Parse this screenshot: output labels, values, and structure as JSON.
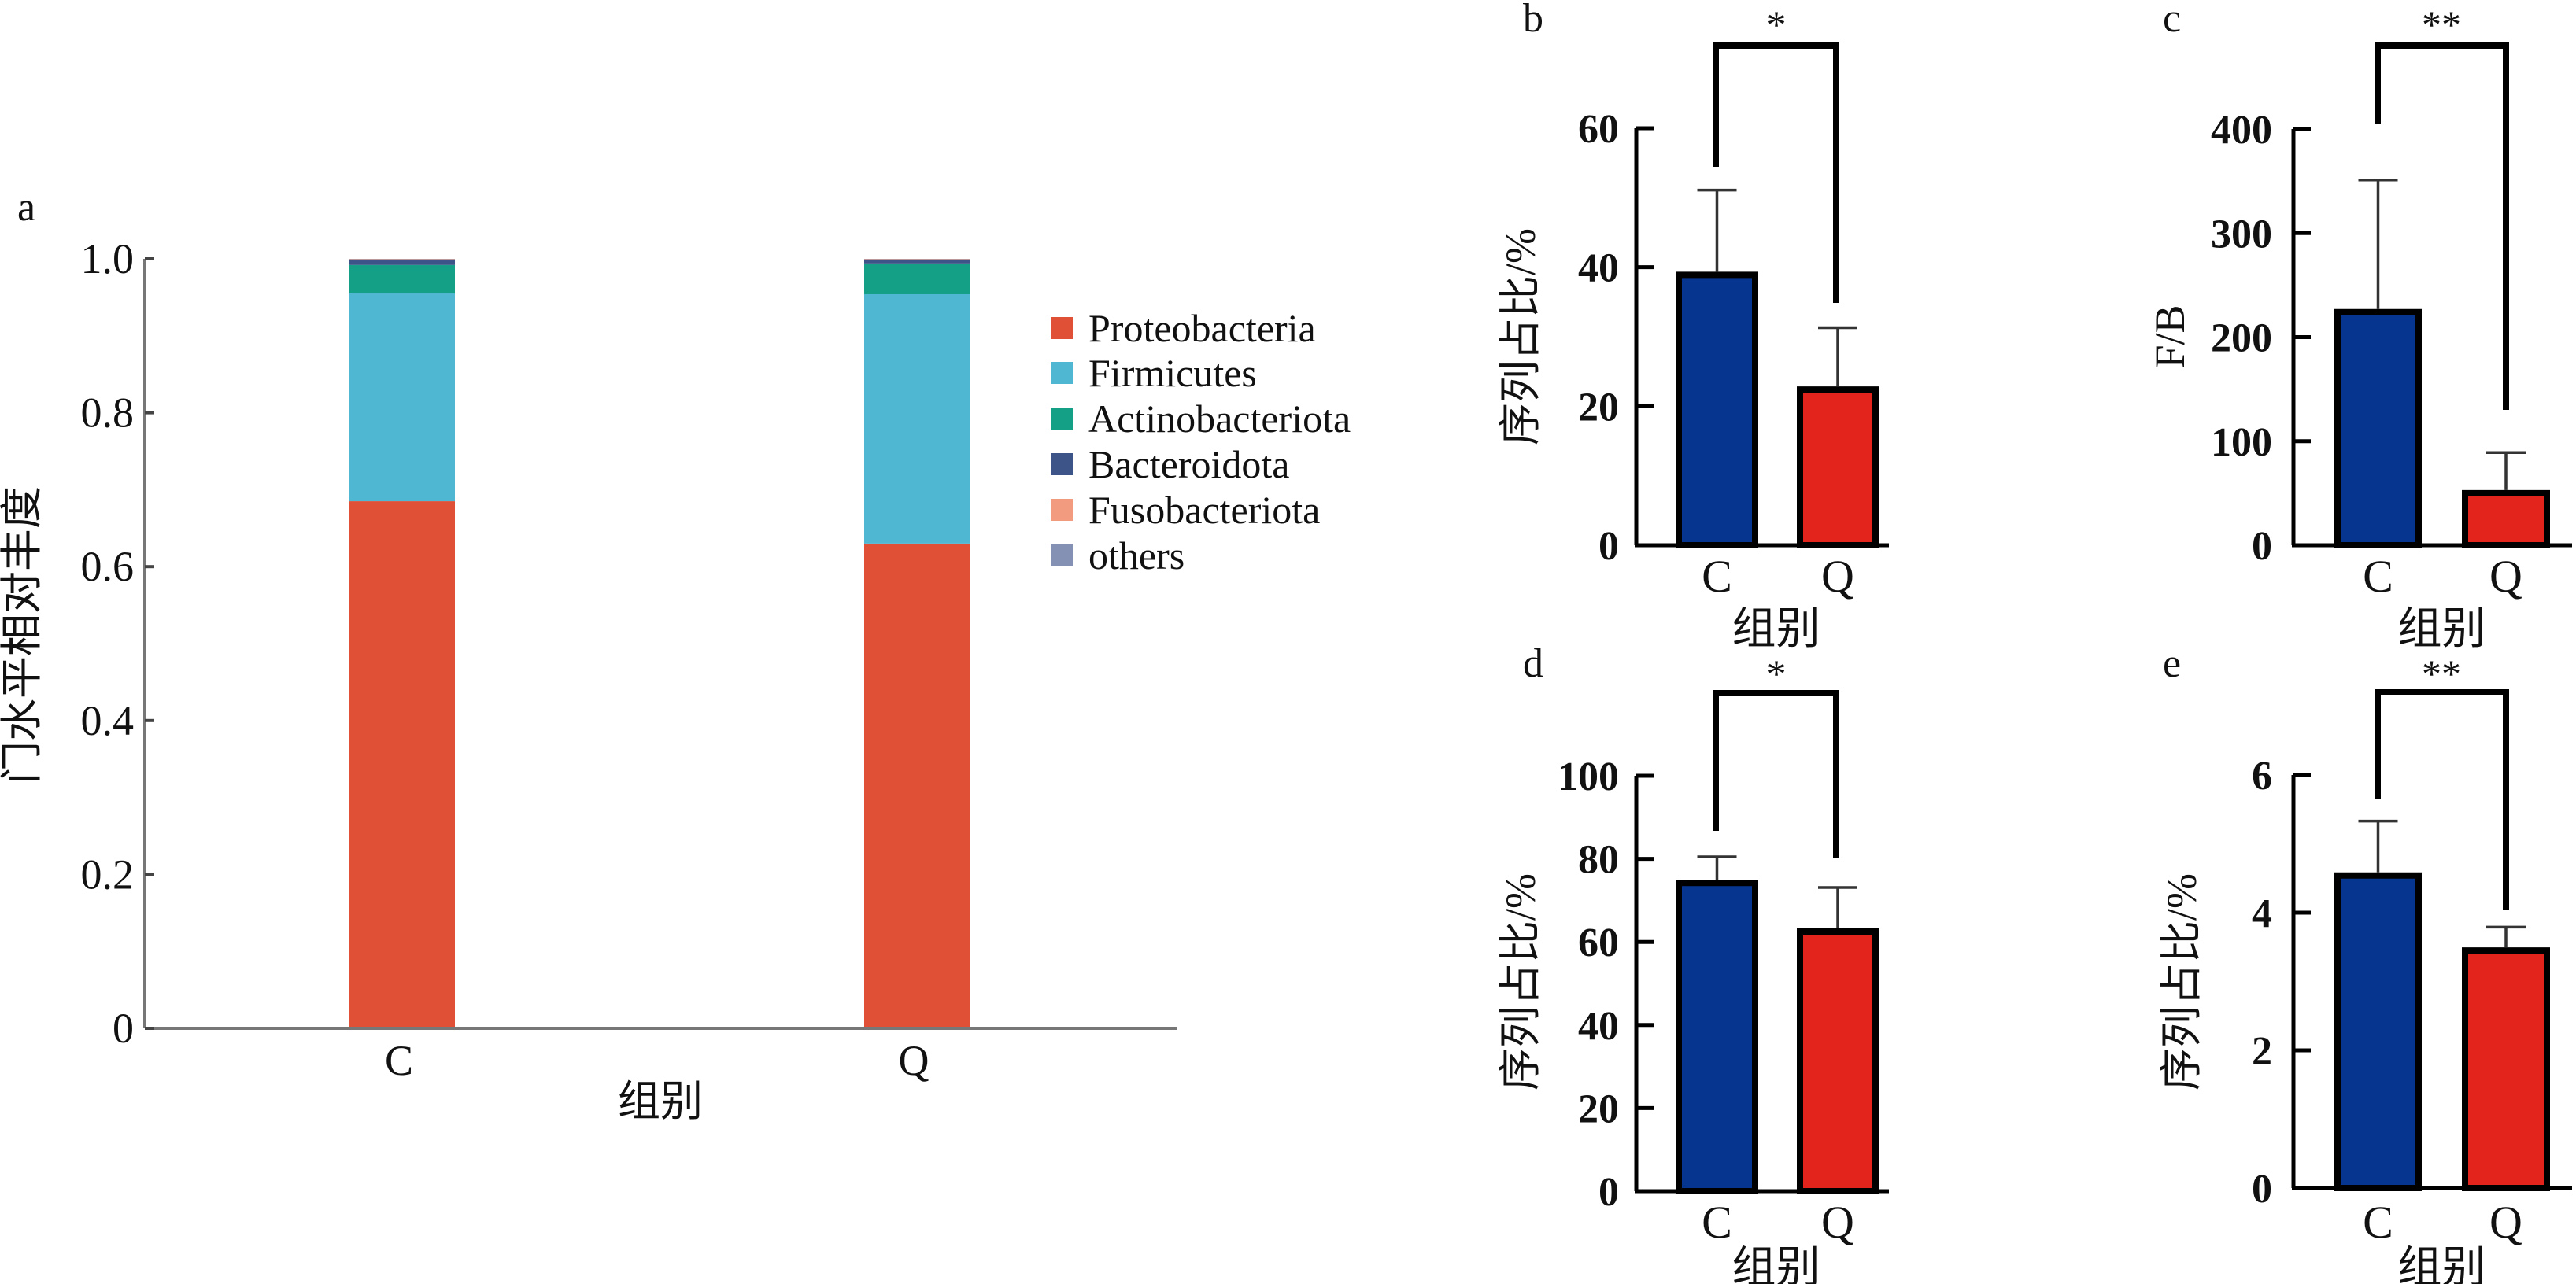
{
  "figure_labels": {
    "a": "a",
    "b": "b",
    "c": "c",
    "d": "d",
    "e": "e"
  },
  "chart_data": [
    {
      "panel": "a",
      "type": "bar",
      "stacked": true,
      "title": "",
      "xlabel": "组别",
      "ylabel": "门水平相对丰度",
      "categories": [
        "C",
        "Q"
      ],
      "ylim": [
        0,
        1.0
      ],
      "yticks": [
        0,
        0.2,
        0.4,
        0.6,
        0.8,
        1.0
      ],
      "ytick_labels": [
        "0",
        "0.2",
        "0.4",
        "0.6",
        "0.8",
        "1.0"
      ],
      "legend_position": "right",
      "series": [
        {
          "name": "Proteobacteria",
          "color": "#df5037",
          "values": [
            0.685,
            0.63
          ]
        },
        {
          "name": "Firmicutes",
          "color": "#4fb7d1",
          "values": [
            0.27,
            0.324
          ]
        },
        {
          "name": "Actinobacteriota",
          "color": "#14a086",
          "values": [
            0.037,
            0.04
          ]
        },
        {
          "name": "Bacteroidota",
          "color": "#3c5488",
          "values": [
            0.007,
            0.005
          ]
        },
        {
          "name": "Fusobacteriota",
          "color": "#f39b7f",
          "values": [
            0.0005,
            0.0005
          ]
        },
        {
          "name": "others",
          "color": "#8491b4",
          "values": [
            0.0005,
            0.0005
          ]
        }
      ]
    },
    {
      "panel": "b",
      "type": "bar",
      "xlabel": "组别",
      "ylabel": "序列占比/%",
      "categories": [
        "C",
        "Q"
      ],
      "values": [
        38.9,
        22.4
      ],
      "error_upper": [
        51.1,
        31.3
      ],
      "colors": [
        "#06358f",
        "#e3241c"
      ],
      "ylim": [
        0,
        60
      ],
      "yticks": [
        0,
        20,
        40,
        60
      ],
      "ytick_labels": [
        "0",
        "20",
        "40",
        "60"
      ],
      "significance": "*"
    },
    {
      "panel": "c",
      "type": "bar",
      "xlabel": "组别",
      "ylabel": "F/B",
      "categories": [
        "C",
        "Q"
      ],
      "values": [
        224,
        50
      ],
      "error_upper": [
        351,
        89
      ],
      "colors": [
        "#06358f",
        "#e3241c"
      ],
      "ylim": [
        0,
        400
      ],
      "yticks": [
        0,
        100,
        200,
        300,
        400
      ],
      "ytick_labels": [
        "0",
        "100",
        "200",
        "300",
        "400"
      ],
      "significance": "**"
    },
    {
      "panel": "d",
      "type": "bar",
      "xlabel": "组别",
      "ylabel": "序列占比/%",
      "categories": [
        "C",
        "Q"
      ],
      "values": [
        74.2,
        62.5
      ],
      "error_upper": [
        80.5,
        73.1
      ],
      "colors": [
        "#06358f",
        "#e3241c"
      ],
      "ylim": [
        0,
        100
      ],
      "yticks": [
        0,
        20,
        40,
        60,
        80,
        100
      ],
      "ytick_labels": [
        "0",
        "20",
        "40",
        "60",
        "80",
        "100"
      ],
      "significance": "*"
    },
    {
      "panel": "e",
      "type": "bar",
      "xlabel": "组别",
      "ylabel": "序列占比/%",
      "categories": [
        "C",
        "Q"
      ],
      "values": [
        4.54,
        3.45
      ],
      "error_upper": [
        5.33,
        3.79
      ],
      "colors": [
        "#06358f",
        "#e3241c"
      ],
      "ylim": [
        0,
        6
      ],
      "yticks": [
        0,
        2,
        4,
        6
      ],
      "ytick_labels": [
        "0",
        "2",
        "4",
        "6"
      ],
      "significance": "**"
    }
  ]
}
